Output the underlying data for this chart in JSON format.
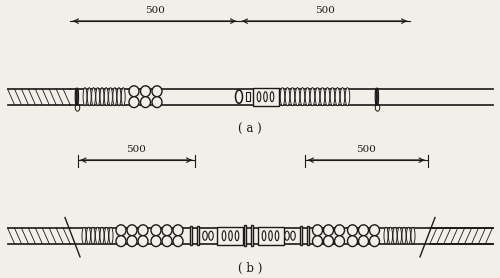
{
  "bg_color": "#f2efe9",
  "line_color": "#1a1a1a",
  "label_a": "( a )",
  "label_b": "( b )",
  "figsize": [
    5.0,
    2.78
  ],
  "dpi": 100
}
